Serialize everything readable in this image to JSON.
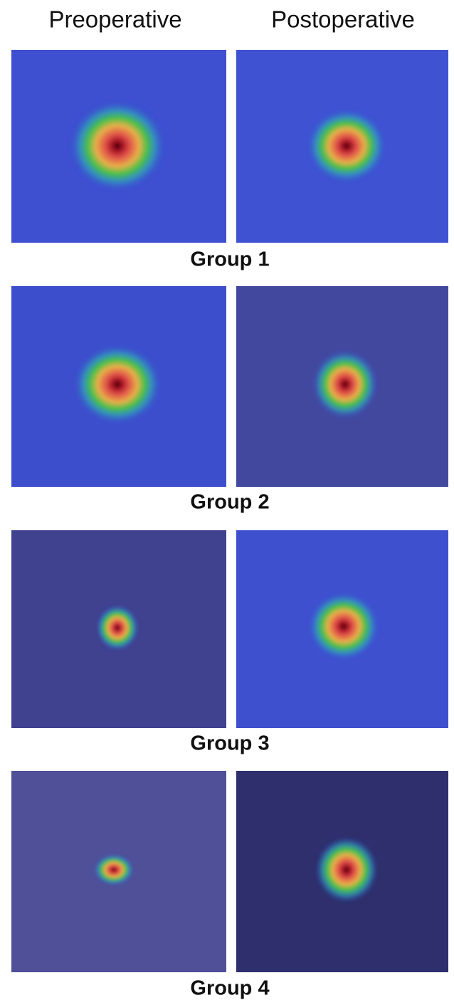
{
  "columns": [
    "Preoperative",
    "Postoperative"
  ],
  "groups": [
    "Group 1",
    "Group 2",
    "Group 3",
    "Group 4"
  ]
}
